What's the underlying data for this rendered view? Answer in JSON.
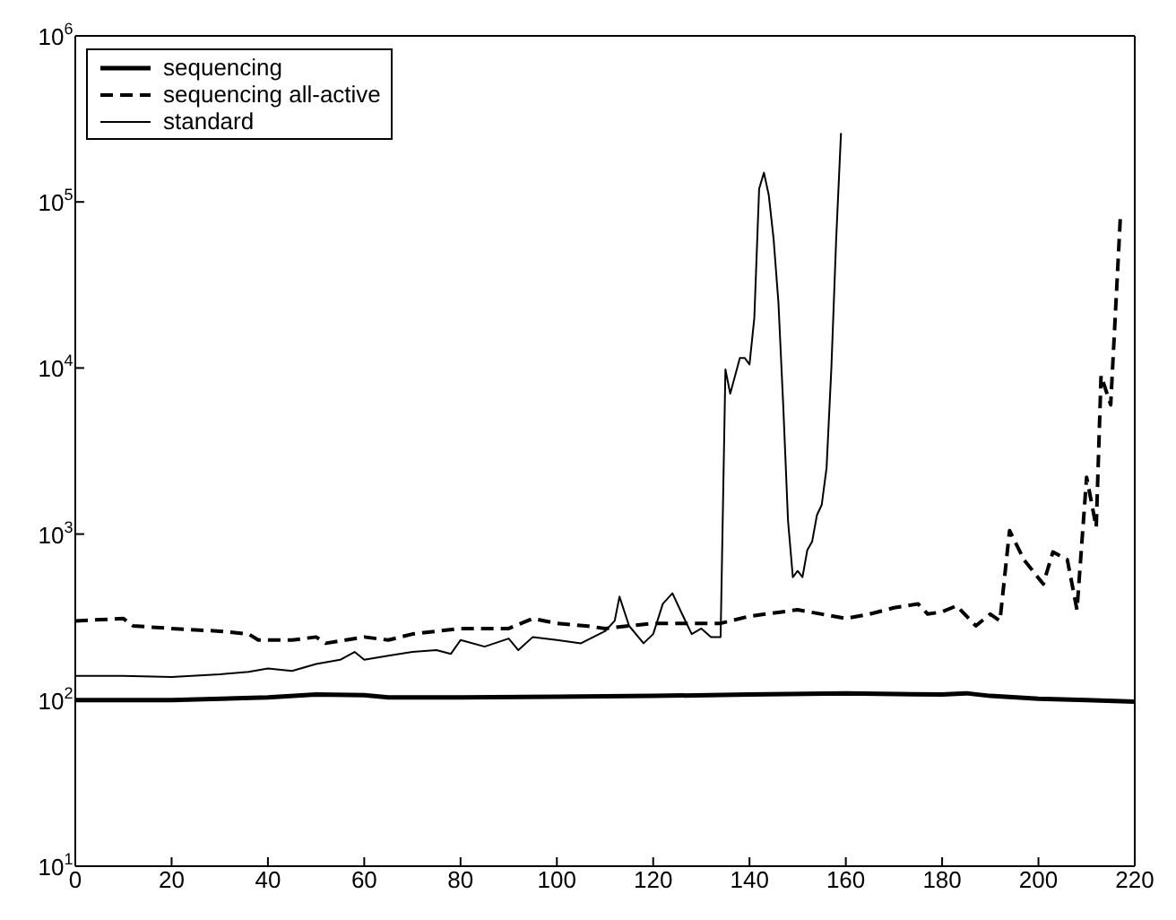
{
  "chart_data": {
    "type": "line",
    "log": "y",
    "grid": false,
    "legend": "top left",
    "marker": "none",
    "xlim": [
      0,
      220
    ],
    "xticks": [
      0,
      20,
      40,
      60,
      80,
      100,
      120,
      140,
      160,
      180,
      200,
      220
    ],
    "ylim": [
      10,
      1000000
    ],
    "yticks": [
      {
        "value": 10,
        "label": "10$^{1}$"
      },
      {
        "value": 100,
        "label": "10$^{2}$"
      },
      {
        "value": 1000,
        "label": "10$^{3}$"
      },
      {
        "value": 10000,
        "label": "10$^{4}$"
      },
      {
        "value": 100000,
        "label": "10$^{5}$"
      },
      {
        "value": 1000000,
        "label": "10$^{6}$"
      }
    ],
    "series": [
      {
        "name": "sequencing",
        "color": "#000000",
        "line_style": "solid",
        "x": [
          0,
          20,
          40,
          50,
          60,
          65,
          80,
          100,
          120,
          140,
          160,
          180,
          185,
          190,
          200,
          210,
          220
        ],
        "values": [
          100,
          100,
          104,
          108,
          107,
          104,
          104,
          105,
          106,
          108,
          110,
          108,
          110,
          106,
          102,
          100,
          98
        ]
      },
      {
        "name": "sequencing all-active",
        "color": "#000000",
        "line_style": "dashed",
        "x": [
          0,
          10,
          12,
          20,
          30,
          36,
          38,
          45,
          50,
          52,
          60,
          65,
          70,
          80,
          90,
          95,
          100,
          106,
          110,
          120,
          130,
          134,
          140,
          150,
          160,
          165,
          170,
          175,
          177,
          180,
          183,
          187,
          190,
          192,
          194,
          197,
          201,
          203,
          206,
          208,
          210,
          212,
          213,
          215,
          217
        ],
        "values": [
          300,
          310,
          280,
          270,
          260,
          250,
          230,
          230,
          240,
          220,
          240,
          230,
          250,
          270,
          270,
          310,
          290,
          280,
          270,
          290,
          290,
          290,
          320,
          350,
          310,
          330,
          360,
          380,
          330,
          340,
          370,
          280,
          330,
          300,
          1050,
          700,
          500,
          780,
          700,
          350,
          2200,
          1100,
          9000,
          6000,
          80000
        ]
      },
      {
        "name": "standard",
        "color": "#000000",
        "line_style": "solid",
        "x": [
          0,
          10,
          20,
          30,
          36,
          40,
          45,
          50,
          55,
          58,
          60,
          65,
          70,
          75,
          78,
          80,
          85,
          90,
          92,
          95,
          100,
          105,
          110,
          112,
          113,
          115,
          118,
          120,
          122,
          124,
          126,
          128,
          130,
          132,
          134,
          135,
          136,
          138,
          139,
          140,
          141,
          142,
          143,
          144,
          145,
          146,
          147,
          148,
          149,
          150,
          151,
          152,
          153,
          154,
          155,
          156,
          157,
          158,
          159
        ],
        "values": [
          140,
          140,
          138,
          143,
          148,
          155,
          150,
          165,
          175,
          195,
          175,
          185,
          195,
          200,
          190,
          230,
          210,
          235,
          200,
          240,
          230,
          220,
          260,
          300,
          420,
          280,
          220,
          250,
          380,
          440,
          330,
          250,
          270,
          240,
          240,
          9800,
          7000,
          11500,
          11500,
          10500,
          20000,
          120000,
          150000,
          110000,
          60000,
          25000,
          6000,
          1200,
          550,
          600,
          550,
          800,
          900,
          1300,
          1500,
          2500,
          10000,
          60000,
          260000
        ]
      }
    ]
  }
}
